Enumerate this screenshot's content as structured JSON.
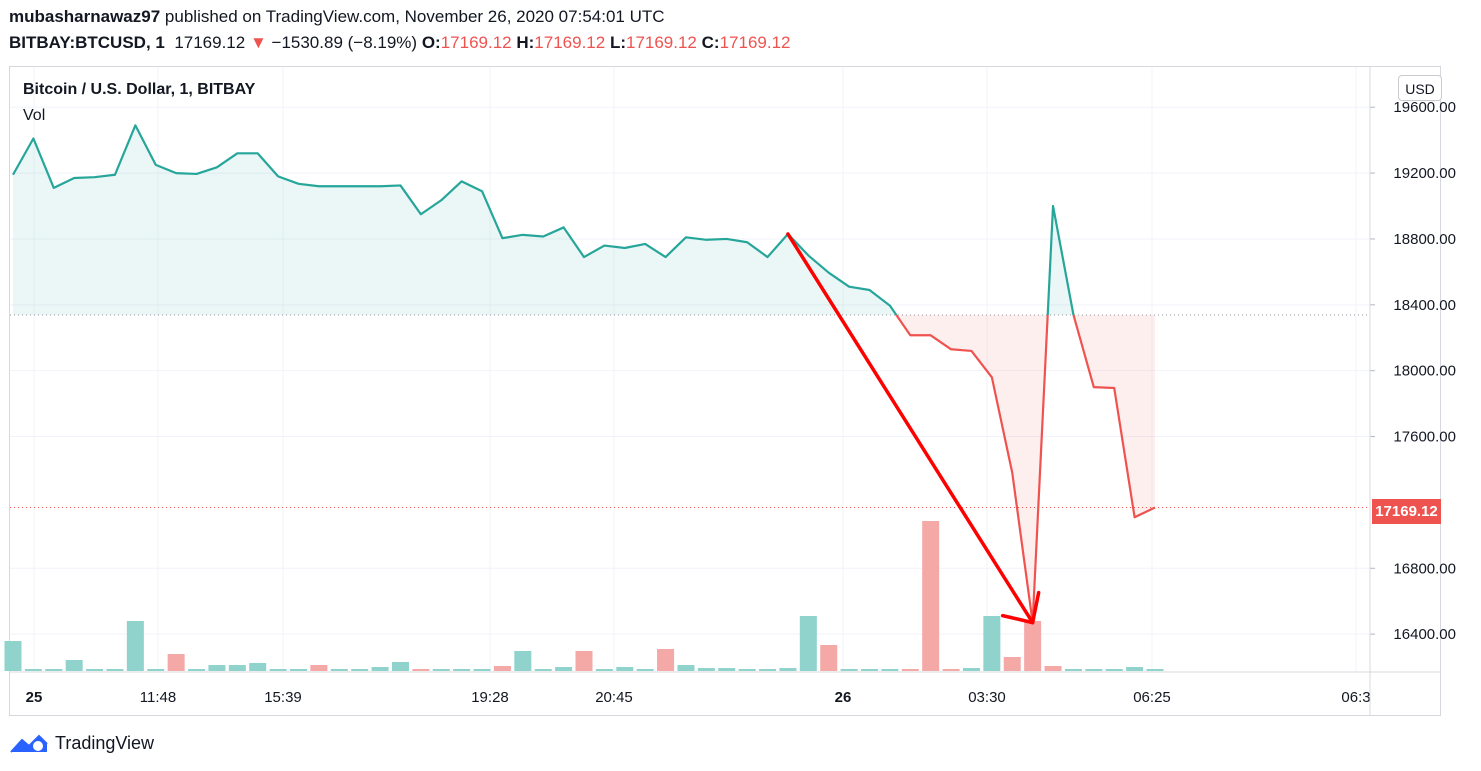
{
  "header": {
    "author": "mubasharnawaz97",
    "published_text": "published on TradingView.com, November 26, 2020 07:54:01 UTC",
    "symbol": "BITBAY:BTCUSD, 1",
    "last": "17169.12",
    "down_arrow": "▼",
    "change": "−1530.89 (−8.19%)",
    "o_label": "O:",
    "o": "17169.12",
    "h_label": "H:",
    "h": "17169.12",
    "l_label": "L:",
    "l": "17169.12",
    "c_label": "C:",
    "c": "17169.12"
  },
  "legend": {
    "series": "Bitcoin / U.S. Dollar, 1, BITBAY",
    "volume": "Vol"
  },
  "currency_button": "USD",
  "last_price_label": "17169.12",
  "footer": {
    "brand": "TradingView"
  },
  "colors": {
    "up": "#26a69a",
    "down": "#ef5350",
    "up_volume": "#8fd3cc",
    "down_volume": "#f4a9a7",
    "arrow": "#ff0000"
  },
  "chart_data": {
    "type": "area",
    "title": "Bitcoin / U.S. Dollar, 1, BITBAY",
    "ylabel": "USD",
    "ylim": [
      16250,
      19750
    ],
    "y_ticks": [
      "19600.00",
      "19200.00",
      "18800.00",
      "18400.00",
      "18000.00",
      "17600.00",
      "16800.00",
      "16400.00"
    ],
    "x_tick_labels": [
      "25",
      "11:48",
      "15:39",
      "19:28",
      "20:45",
      "26",
      "03:30",
      "06:25",
      "06:3"
    ],
    "baseline": 18338,
    "last_price": 17169.12,
    "series": [
      {
        "name": "Bitcoin / U.S. Dollar, 1, BITBAY",
        "values": [
          19190,
          19410,
          19110,
          19170,
          19175,
          19190,
          19490,
          19250,
          19200,
          19195,
          19235,
          19320,
          19320,
          19180,
          19135,
          19120,
          19120,
          19120,
          19120,
          19125,
          18950,
          19035,
          19150,
          19090,
          18805,
          18825,
          18815,
          18870,
          18690,
          18760,
          18745,
          18770,
          18690,
          18810,
          18795,
          18800,
          18780,
          18690,
          18830,
          18700,
          18595,
          18510,
          18490,
          18395,
          18215,
          18215,
          18130,
          18120,
          17960,
          17380,
          16470,
          19000,
          18340,
          17900,
          17895,
          17110,
          17169
        ]
      }
    ],
    "volume": {
      "name": "Vol",
      "values": [
        30,
        2,
        2,
        11,
        2,
        2,
        50,
        2,
        17,
        2,
        6,
        6,
        8,
        2,
        2,
        6,
        2,
        2,
        4,
        9,
        2,
        2,
        2,
        2,
        5,
        20,
        2,
        4,
        20,
        2,
        4,
        2,
        22,
        6,
        3,
        3,
        2,
        2,
        3,
        55,
        26,
        2,
        2,
        2,
        2,
        150,
        2,
        3,
        55,
        14,
        50,
        5,
        2,
        2,
        2,
        4,
        2
      ],
      "direction": [
        "up",
        "up",
        "up",
        "up",
        "up",
        "up",
        "up",
        "up",
        "down",
        "up",
        "up",
        "up",
        "up",
        "up",
        "up",
        "down",
        "up",
        "up",
        "up",
        "up",
        "down",
        "up",
        "up",
        "up",
        "down",
        "up",
        "up",
        "up",
        "down",
        "up",
        "up",
        "up",
        "down",
        "up",
        "up",
        "up",
        "up",
        "up",
        "up",
        "up",
        "down",
        "up",
        "up",
        "up",
        "down",
        "down",
        "down",
        "up",
        "up",
        "down",
        "down",
        "down",
        "up",
        "up",
        "up",
        "up",
        "up"
      ]
    },
    "annotation": {
      "type": "arrow",
      "from_index": 38,
      "from_value": 18830,
      "to_index": 50,
      "to_value": 16470
    }
  }
}
